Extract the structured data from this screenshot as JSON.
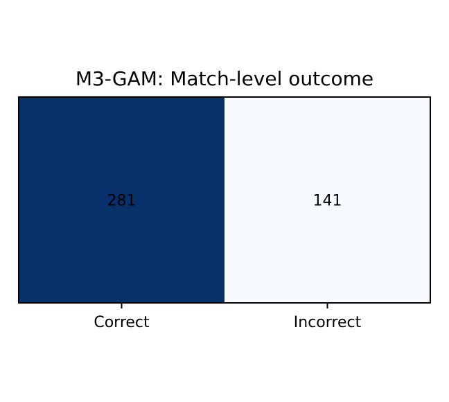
{
  "chart_data": {
    "type": "heatmap",
    "title": "M3-GAM: Match-level outcome",
    "categories": [
      "Correct",
      "Incorrect"
    ],
    "values": [
      281,
      141
    ],
    "colormap": "Blues",
    "colors": {
      "high": "#08306b",
      "low": "#f7fbff",
      "frame": "#000000",
      "text": "#000000"
    },
    "xlabel": "",
    "ylabel": "",
    "legend": "none",
    "grid": false
  }
}
